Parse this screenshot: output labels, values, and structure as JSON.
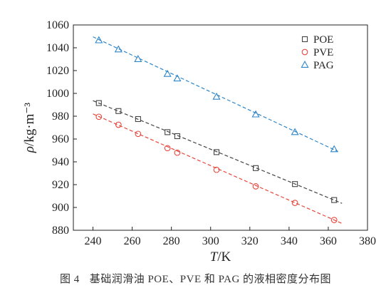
{
  "chart_data": {
    "type": "scatter",
    "x_axis": {
      "label_var": "T",
      "label_unit": "/K",
      "range": [
        230,
        380
      ],
      "ticks": [
        240,
        260,
        280,
        300,
        320,
        340,
        360,
        380
      ]
    },
    "y_axis": {
      "label_var": "ρ",
      "label_unit": "/kg·m⁻³",
      "range": [
        880,
        1060
      ],
      "ticks": [
        880,
        900,
        920,
        940,
        960,
        980,
        1000,
        1020,
        1040,
        1060
      ]
    },
    "legend_position": "top-right",
    "fit_lines": "dashed linear fit per series",
    "series": [
      {
        "name": "POE",
        "marker": "square",
        "color": "#444444",
        "x": [
          243,
          253,
          263,
          278,
          283,
          303,
          323,
          343,
          363
        ],
        "y": [
          991.5,
          984.5,
          977.5,
          966,
          962.5,
          948.5,
          934.5,
          920.5,
          906.5
        ],
        "fit": [
          [
            240,
            993.6
          ],
          [
            367,
            903.6
          ]
        ]
      },
      {
        "name": "PVE",
        "marker": "circle",
        "color": "#e8463c",
        "x": [
          243,
          253,
          263,
          278,
          283,
          303,
          323,
          343,
          363
        ],
        "y": [
          979.5,
          972.5,
          964.5,
          952,
          948,
          933,
          918.5,
          904,
          889
        ],
        "fit": [
          [
            240,
            982
          ],
          [
            367,
            886
          ]
        ]
      },
      {
        "name": "PAG",
        "marker": "triangle",
        "color": "#2f86c8",
        "x": [
          243,
          253,
          263,
          278,
          283,
          303,
          323,
          343,
          363
        ],
        "y": [
          1046.5,
          1038.5,
          1030,
          1017,
          1013,
          997,
          981.5,
          966,
          951
        ],
        "fit": [
          [
            240,
            1049.6
          ],
          [
            365,
            949
          ]
        ]
      }
    ]
  },
  "caption": {
    "label": "图 4",
    "text": "基础润滑油 POE、PVE 和 PAG 的液相密度分布图"
  }
}
